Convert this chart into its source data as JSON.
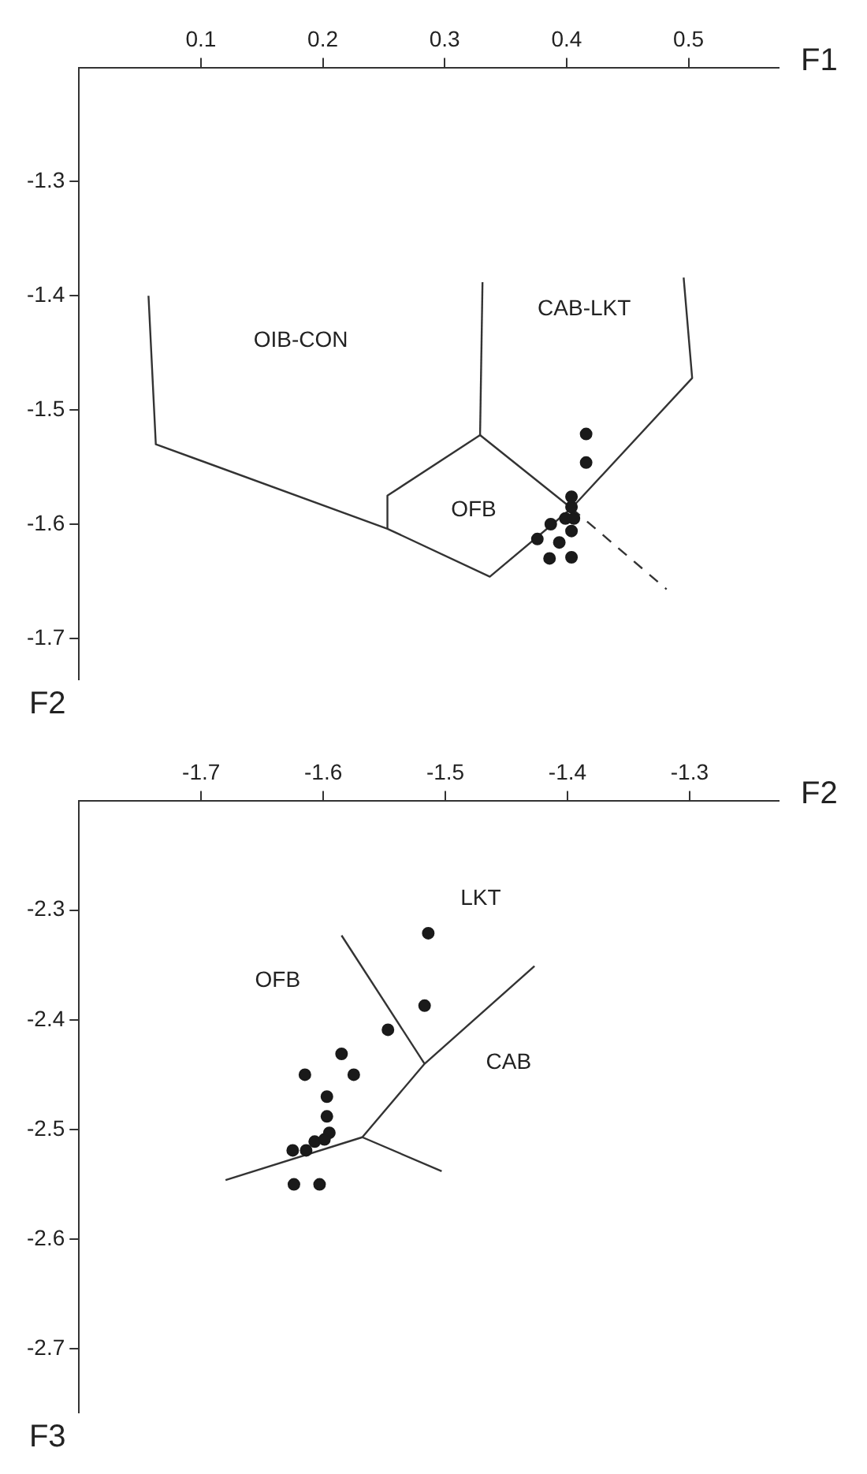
{
  "chart_data": [
    {
      "type": "scatter",
      "xlabel": "F1",
      "ylabel": "F2",
      "xlim": [
        0,
        0.574
      ],
      "ylim": [
        -1.736,
        -1.2
      ],
      "xticks": [
        0.1,
        0.2,
        0.3,
        0.4,
        0.5
      ],
      "yticks": [
        -1.7,
        -1.6,
        -1.5,
        -1.4,
        -1.3
      ],
      "grid": false,
      "legend": false,
      "marker": "circle",
      "series": [
        {
          "type": "scatter",
          "color": "#1a1a1a",
          "x": [
            0.416,
            0.416,
            0.404,
            0.404,
            0.399,
            0.406,
            0.404,
            0.376,
            0.394,
            0.386,
            0.404,
            0.387
          ],
          "values": [
            -1.521,
            -1.546,
            -1.576,
            -1.585,
            -1.595,
            -1.595,
            -1.606,
            -1.613,
            -1.616,
            -1.63,
            -1.629,
            -1.6
          ]
        },
        {
          "type": "line",
          "color": "#333333",
          "marker": "none",
          "line_style": "solid",
          "x": [
            0.057,
            0.063,
            0.253,
            0.337,
            0.404,
            0.503,
            0.496
          ],
          "values": [
            -1.4,
            -1.53,
            -1.604,
            -1.646,
            -1.586,
            -1.472,
            -1.384
          ]
        },
        {
          "type": "line",
          "color": "#333333",
          "marker": "none",
          "line_style": "solid",
          "x": [
            0.253,
            0.253,
            0.329,
            0.404
          ],
          "values": [
            -1.604,
            -1.575,
            -1.522,
            -1.586
          ]
        },
        {
          "type": "line",
          "color": "#333333",
          "marker": "none",
          "line_style": "solid",
          "x": [
            0.331,
            0.329
          ],
          "values": [
            -1.388,
            -1.522
          ]
        },
        {
          "type": "line",
          "color": "#333333",
          "marker": "none",
          "line_style": "dashed",
          "x": [
            0.404,
            0.482
          ],
          "values": [
            -1.586,
            -1.657
          ]
        }
      ],
      "annotations": [
        "OIB-CON",
        "CAB-LKT",
        "OFB"
      ]
    },
    {
      "type": "scatter",
      "xlabel": "F2",
      "ylabel": "F3",
      "xlim": [
        -1.8,
        -1.227
      ],
      "ylim": [
        -2.758,
        -2.2
      ],
      "xticks": [
        -1.7,
        -1.6,
        -1.5,
        -1.4,
        -1.3
      ],
      "yticks": [
        -2.7,
        -2.6,
        -2.5,
        -2.4,
        -2.3
      ],
      "grid": false,
      "legend": false,
      "marker": "circle",
      "series": [
        {
          "type": "scatter",
          "color": "#1a1a1a",
          "x": [
            -1.514,
            -1.517,
            -1.547,
            -1.585,
            -1.615,
            -1.575,
            -1.597,
            -1.597,
            -1.595,
            -1.599,
            -1.607,
            -1.625,
            -1.614,
            -1.624,
            -1.603
          ],
          "values": [
            -2.321,
            -2.387,
            -2.409,
            -2.431,
            -2.45,
            -2.45,
            -2.47,
            -2.488,
            -2.503,
            -2.509,
            -2.511,
            -2.519,
            -2.519,
            -2.55,
            -2.55
          ]
        },
        {
          "type": "line",
          "color": "#333333",
          "marker": "none",
          "line_style": "solid",
          "x": [
            -1.585,
            -1.517
          ],
          "values": [
            -2.323,
            -2.44
          ]
        },
        {
          "type": "line",
          "color": "#333333",
          "marker": "none",
          "line_style": "solid",
          "x": [
            -1.427,
            -1.517,
            -1.568,
            -1.503
          ],
          "values": [
            -2.351,
            -2.44,
            -2.507,
            -2.538
          ]
        },
        {
          "type": "line",
          "color": "#333333",
          "marker": "none",
          "line_style": "solid",
          "x": [
            -1.68,
            -1.568
          ],
          "values": [
            -2.546,
            -2.507
          ]
        }
      ],
      "annotations": [
        "LKT",
        "OFB",
        "CAB"
      ]
    }
  ]
}
